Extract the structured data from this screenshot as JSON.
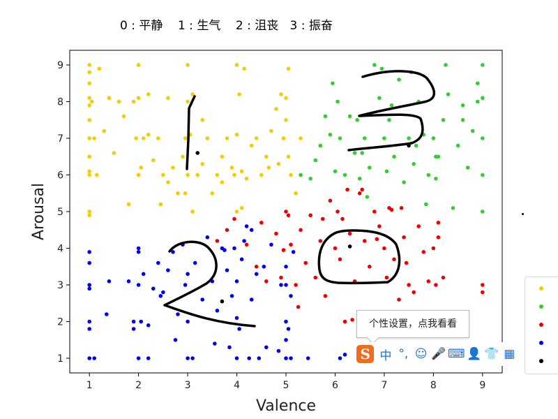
{
  "caption": "0 : 平静    1 : 生气    2 : 沮丧   3 : 振奋",
  "chart_data": {
    "type": "scatter",
    "xlabel": "Valence",
    "ylabel": "Arousal",
    "xlim": [
      0.6,
      9.4
    ],
    "ylim": [
      0.6,
      9.4
    ],
    "xticks": [
      1,
      2,
      3,
      4,
      5,
      6,
      7,
      8,
      9
    ],
    "yticks": [
      1,
      2,
      3,
      4,
      5,
      6,
      7,
      8,
      9
    ],
    "grid": false,
    "legend_position": "bottom-right (partially cut off)",
    "series": [
      {
        "color": "#f5cc00",
        "points": [
          [
            1,
            9
          ],
          [
            1,
            8.8
          ],
          [
            1,
            8.5
          ],
          [
            1,
            8.1
          ],
          [
            1,
            7.9
          ],
          [
            1,
            7.5
          ],
          [
            1,
            7
          ],
          [
            1,
            6.5
          ],
          [
            1,
            6.1
          ],
          [
            1,
            6
          ],
          [
            1,
            5
          ],
          [
            1,
            4.9
          ],
          [
            1.05,
            8
          ],
          [
            1.1,
            7
          ],
          [
            1.15,
            6
          ],
          [
            1.2,
            8.9
          ],
          [
            1.3,
            7.2
          ],
          [
            1.4,
            8.1
          ],
          [
            1.5,
            6.6
          ],
          [
            1.6,
            8
          ],
          [
            1.7,
            7.6
          ],
          [
            1.8,
            5.2
          ],
          [
            2,
            9
          ],
          [
            1.9,
            8
          ],
          [
            2,
            8.1
          ],
          [
            2.1,
            7
          ],
          [
            1.95,
            7
          ],
          [
            2.05,
            6.2
          ],
          [
            2,
            6
          ],
          [
            2.2,
            7.1
          ],
          [
            2.3,
            6.4
          ],
          [
            2.4,
            7
          ],
          [
            2.5,
            6
          ],
          [
            2.6,
            5.8
          ],
          [
            2.7,
            6.2
          ],
          [
            2.8,
            5.5
          ],
          [
            2.9,
            6.5
          ],
          [
            2.95,
            7
          ],
          [
            3,
            9
          ],
          [
            3,
            8
          ],
          [
            3.05,
            7.1
          ],
          [
            3,
            6
          ],
          [
            3.1,
            5
          ],
          [
            2.95,
            5.5
          ],
          [
            3.2,
            6
          ],
          [
            3.3,
            6.3
          ],
          [
            3.4,
            7
          ],
          [
            3.5,
            5.5
          ],
          [
            3.6,
            6
          ],
          [
            3.7,
            5.8
          ],
          [
            3.8,
            7
          ],
          [
            3.9,
            6.2
          ],
          [
            4,
            9
          ],
          [
            4.05,
            8.2
          ],
          [
            4,
            7.1
          ],
          [
            3.95,
            6
          ],
          [
            4.1,
            6.1
          ],
          [
            4.2,
            5.9
          ],
          [
            4.3,
            6.8
          ],
          [
            4,
            5
          ],
          [
            4.1,
            5.1
          ],
          [
            4.4,
            7
          ],
          [
            4.5,
            6
          ],
          [
            4.6,
            6.5
          ],
          [
            4.7,
            7.2
          ],
          [
            4.8,
            7.8
          ],
          [
            4.9,
            8.2
          ],
          [
            4.95,
            7
          ],
          [
            5,
            8.1
          ],
          [
            5,
            7.5
          ],
          [
            5.05,
            6.5
          ],
          [
            5.1,
            6
          ],
          [
            5.2,
            5.5
          ],
          [
            5.3,
            7
          ],
          [
            4.85,
            6.3
          ],
          [
            3.3,
            7.5
          ],
          [
            2.6,
            8.1
          ],
          [
            2.2,
            8.2
          ],
          [
            3.7,
            6.5
          ],
          [
            4.15,
            8.9
          ],
          [
            5.05,
            8.9
          ],
          [
            4.65,
            6.2
          ],
          [
            2.45,
            5.2
          ],
          [
            3.1,
            8.2
          ]
        ]
      },
      {
        "color": "#33cc33",
        "points": [
          [
            5.3,
            6
          ],
          [
            5.5,
            5.9
          ],
          [
            5.6,
            6.4
          ],
          [
            5.7,
            6.8
          ],
          [
            5.8,
            7.6
          ],
          [
            5.9,
            7.1
          ],
          [
            6,
            6.1
          ],
          [
            6.05,
            8
          ],
          [
            6.1,
            7
          ],
          [
            6.2,
            6
          ],
          [
            6.3,
            7.6
          ],
          [
            6.4,
            6.6
          ],
          [
            6.5,
            5.9
          ],
          [
            6.6,
            7
          ],
          [
            6.7,
            6.2
          ],
          [
            6.8,
            9
          ],
          [
            6.9,
            8.1
          ],
          [
            7,
            7
          ],
          [
            7.05,
            6.1
          ],
          [
            7.1,
            7.5
          ],
          [
            7.2,
            6.5
          ],
          [
            7.3,
            8.6
          ],
          [
            7.4,
            5.8
          ],
          [
            7.5,
            7
          ],
          [
            7.6,
            6.3
          ],
          [
            7.7,
            8
          ],
          [
            7.8,
            7.1
          ],
          [
            7.9,
            6
          ],
          [
            8,
            7
          ],
          [
            8.05,
            5.9
          ],
          [
            8.1,
            6.5
          ],
          [
            8.2,
            7.5
          ],
          [
            8.3,
            8.2
          ],
          [
            8.4,
            5.1
          ],
          [
            8.5,
            6.8
          ],
          [
            8.6,
            7.9
          ],
          [
            8.7,
            6.2
          ],
          [
            8.8,
            7.2
          ],
          [
            8.9,
            8
          ],
          [
            9,
            9
          ],
          [
            9,
            8.1
          ],
          [
            9,
            7
          ],
          [
            9,
            6
          ],
          [
            9,
            5
          ],
          [
            8.9,
            8.5
          ],
          [
            7.85,
            5.2
          ],
          [
            6.95,
            8.9
          ],
          [
            7.55,
            8.8
          ],
          [
            8.25,
            9
          ],
          [
            6.45,
            7.5
          ],
          [
            5.95,
            8.5
          ],
          [
            6.65,
            5.4
          ],
          [
            7.15,
            7.9
          ],
          [
            8.6,
            7.5
          ],
          [
            7.65,
            6.8
          ],
          [
            8.05,
            6.5
          ],
          [
            6.55,
            6.6
          ]
        ]
      },
      {
        "color": "#ee0000",
        "points": [
          [
            3.6,
            4.2
          ],
          [
            3.8,
            4.5
          ],
          [
            3.95,
            4.8
          ],
          [
            4.2,
            4.1
          ],
          [
            4.4,
            3.5
          ],
          [
            4.5,
            4.7
          ],
          [
            4.6,
            3.1
          ],
          [
            4.8,
            4.4
          ],
          [
            4.9,
            3.2
          ],
          [
            5,
            5
          ],
          [
            5.05,
            4.9
          ],
          [
            5.1,
            4.1
          ],
          [
            5.2,
            3
          ],
          [
            5.3,
            4.5
          ],
          [
            5.4,
            3.6
          ],
          [
            5.5,
            4.9
          ],
          [
            5.6,
            3.2
          ],
          [
            5.7,
            4.2
          ],
          [
            5.8,
            2.7
          ],
          [
            5.9,
            5.3
          ],
          [
            6,
            4
          ],
          [
            6.05,
            5
          ],
          [
            6.1,
            3.7
          ],
          [
            6.2,
            2
          ],
          [
            6.3,
            4.4
          ],
          [
            6.4,
            3.1
          ],
          [
            6.5,
            5.5
          ],
          [
            6.6,
            4.2
          ],
          [
            6.7,
            3.5
          ],
          [
            6.8,
            5
          ],
          [
            6.9,
            4.6
          ],
          [
            7,
            4
          ],
          [
            7.05,
            3.2
          ],
          [
            7.1,
            5.1
          ],
          [
            7.2,
            3.7
          ],
          [
            7.3,
            2.6
          ],
          [
            7.4,
            4.3
          ],
          [
            7.5,
            3
          ],
          [
            7.6,
            2.8
          ],
          [
            7.7,
            4.6
          ],
          [
            7.8,
            3.9
          ],
          [
            7.9,
            3.1
          ],
          [
            8,
            4
          ],
          [
            8.05,
            3
          ],
          [
            8.1,
            4.3
          ],
          [
            8.2,
            3.2
          ],
          [
            8.1,
            4.7
          ],
          [
            9,
            3
          ],
          [
            9,
            2.8
          ],
          [
            6.55,
            5.6
          ],
          [
            7.15,
            5.05
          ],
          [
            7.35,
            5.1
          ],
          [
            6.25,
            5.6
          ],
          [
            5.75,
            4.8
          ],
          [
            6.85,
            4.25
          ],
          [
            4.95,
            3.95
          ],
          [
            5.25,
            2.4
          ],
          [
            6.35,
            2.05
          ],
          [
            7.45,
            3.6
          ],
          [
            6.15,
            4.8
          ]
        ]
      },
      {
        "color": "#0000ee",
        "points": [
          [
            1,
            3.9
          ],
          [
            1,
            3.6
          ],
          [
            1,
            3
          ],
          [
            1,
            2.9
          ],
          [
            1,
            2
          ],
          [
            1,
            1.8
          ],
          [
            1,
            1
          ],
          [
            1.1,
            1
          ],
          [
            1.4,
            3.1
          ],
          [
            1.35,
            2.2
          ],
          [
            1.8,
            3.1
          ],
          [
            1.9,
            2
          ],
          [
            1.9,
            1.8
          ],
          [
            2,
            4
          ],
          [
            2,
            3.9
          ],
          [
            2,
            3
          ],
          [
            2.05,
            2
          ],
          [
            2,
            1
          ],
          [
            2.1,
            3.3
          ],
          [
            2.2,
            1
          ],
          [
            2.2,
            1.9
          ],
          [
            2.3,
            2.9
          ],
          [
            2.4,
            3.6
          ],
          [
            2.5,
            2.8
          ],
          [
            2.6,
            3.4
          ],
          [
            2.7,
            3.9
          ],
          [
            2.8,
            2.2
          ],
          [
            2.9,
            4.1
          ],
          [
            2.95,
            3
          ],
          [
            3,
            3.3
          ],
          [
            3,
            2
          ],
          [
            3,
            1
          ],
          [
            3.1,
            1
          ],
          [
            3.15,
            3.6
          ],
          [
            3.3,
            2.6
          ],
          [
            3.4,
            4.3
          ],
          [
            3.5,
            3.1
          ],
          [
            3.6,
            2.3
          ],
          [
            3.7,
            4
          ],
          [
            3.8,
            3.4
          ],
          [
            3.9,
            2.7
          ],
          [
            3.95,
            4
          ],
          [
            4,
            3.1
          ],
          [
            4,
            2.1
          ],
          [
            4,
            1
          ],
          [
            4.05,
            1.8
          ],
          [
            4.1,
            3.7
          ],
          [
            4.2,
            4.6
          ],
          [
            4.25,
            1
          ],
          [
            4.3,
            2.6
          ],
          [
            4.4,
            3.3
          ],
          [
            4.45,
            1
          ],
          [
            4.6,
            1.3
          ],
          [
            4.7,
            4.1
          ],
          [
            4.9,
            3
          ],
          [
            5,
            3.5
          ],
          [
            5,
            3
          ],
          [
            5,
            2
          ],
          [
            5.05,
            1.8
          ],
          [
            5,
            1
          ],
          [
            5.1,
            1
          ],
          [
            5.15,
            3.9
          ],
          [
            5,
            1.5
          ],
          [
            5.1,
            2.7
          ],
          [
            4.15,
            4.2
          ],
          [
            3.55,
            1.4
          ],
          [
            2.75,
            1.5
          ],
          [
            5.45,
            1
          ],
          [
            6.1,
            1
          ],
          [
            6.2,
            1.1
          ],
          [
            4.55,
            3.5
          ],
          [
            4.85,
            1.2
          ],
          [
            3.75,
            3.95
          ],
          [
            4.3,
            4.5
          ],
          [
            2.45,
            2.7
          ],
          [
            3.85,
            1.3
          ]
        ]
      },
      {
        "color": "#000000",
        "points": [
          [
            3.2,
            6.6
          ],
          [
            7.5,
            6.8
          ],
          [
            6.3,
            4.05
          ],
          [
            3.7,
            2.55
          ]
        ]
      }
    ],
    "annotations": [
      {
        "type": "handwritten digit",
        "label": "1",
        "color": "#000000"
      },
      {
        "type": "handwritten digit",
        "label": "3",
        "color": "#000000"
      },
      {
        "type": "handwritten digit",
        "label": "2",
        "color": "#000000"
      },
      {
        "type": "handwritten digit",
        "label": "0",
        "color": "#000000"
      }
    ]
  },
  "ime": {
    "tooltip": "个性设置，点我看看",
    "logo": "S",
    "buttons": [
      {
        "icon": "chinese-mode-icon",
        "glyph": "中"
      },
      {
        "icon": "punctuation-icon",
        "glyph": "°,"
      },
      {
        "icon": "emoji-icon",
        "glyph": "☺"
      },
      {
        "icon": "microphone-icon",
        "glyph": "🎤"
      },
      {
        "icon": "keyboard-icon",
        "glyph": "⌨"
      },
      {
        "icon": "user-icon",
        "glyph": "👤"
      },
      {
        "icon": "skin-shirt-icon",
        "glyph": "👕"
      },
      {
        "icon": "grid-menu-icon",
        "glyph": "▦"
      }
    ]
  },
  "legend": {
    "colors": [
      "#f5cc00",
      "#33cc33",
      "#ee0000",
      "#0000ee",
      "#000000"
    ]
  }
}
